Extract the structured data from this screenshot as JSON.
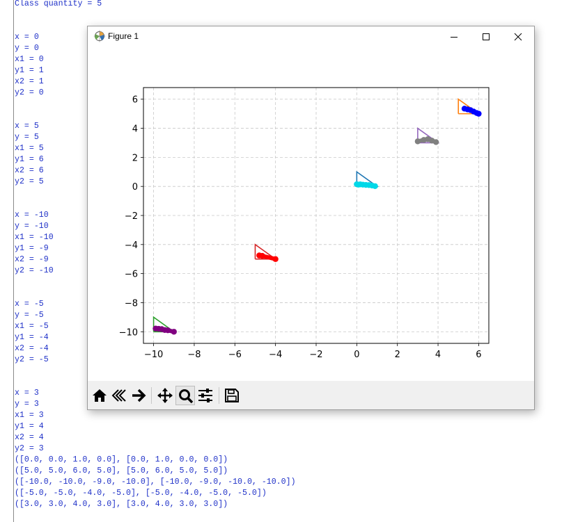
{
  "console": {
    "lines": [
      "Class quantity = 5",
      "",
      "",
      "x = 0",
      "y = 0",
      "x1 = 0",
      "y1 = 1",
      "x2 = 1",
      "y2 = 0",
      "",
      "",
      "x = 5",
      "y = 5",
      "x1 = 5",
      "y1 = 6",
      "x2 = 6",
      "y2 = 5",
      "",
      "",
      "x = -10",
      "y = -10",
      "x1 = -10",
      "y1 = -9",
      "x2 = -9",
      "y2 = -10",
      "",
      "",
      "x = -5",
      "y = -5",
      "x1 = -5",
      "y1 = -4",
      "x2 = -4",
      "y2 = -5",
      "",
      "",
      "x = 3",
      "y = 3",
      "x1 = 3",
      "y1 = 4",
      "x2 = 4",
      "y2 = 3",
      "([0.0, 0.0, 1.0, 0.0], [0.0, 1.0, 0.0, 0.0])",
      "([5.0, 5.0, 6.0, 5.0], [5.0, 6.0, 5.0, 5.0])",
      "([-10.0, -10.0, -9.0, -10.0], [-10.0, -9.0, -10.0, -10.0])",
      "([-5.0, -5.0, -4.0, -5.0], [-5.0, -4.0, -5.0, -5.0])",
      "([3.0, 3.0, 4.0, 3.0], [3.0, 4.0, 3.0, 3.0])"
    ]
  },
  "window": {
    "title": "Figure 1",
    "icons": {
      "app": "matplotlib-figure-icon",
      "minimize": "minimize-icon",
      "maximize": "maximize-icon",
      "close": "close-icon"
    }
  },
  "toolbar": {
    "buttons": [
      {
        "name": "home-button",
        "icon": "home-icon"
      },
      {
        "name": "back-button",
        "icon": "back-arrow-icon"
      },
      {
        "name": "forward-button",
        "icon": "forward-arrow-icon"
      },
      {
        "name": "pan-button",
        "icon": "pan-move-icon"
      },
      {
        "name": "zoom-button",
        "icon": "zoom-magnifier-icon",
        "active": true
      },
      {
        "name": "configure-subplots-button",
        "icon": "sliders-icon"
      },
      {
        "name": "save-button",
        "icon": "save-disk-icon"
      }
    ]
  },
  "chart_data": {
    "type": "line",
    "title": "",
    "xlabel": "",
    "ylabel": "",
    "xlim": [
      -10.5,
      6.5
    ],
    "ylim": [
      -10.8,
      6.8
    ],
    "xticks": [
      -10,
      -8,
      -6,
      -4,
      -2,
      0,
      2,
      4,
      6
    ],
    "xtick_labels": [
      "−10",
      "−8",
      "−6",
      "−4",
      "−2",
      "0",
      "2",
      "4",
      "6"
    ],
    "yticks": [
      -10,
      -8,
      -6,
      -4,
      -2,
      0,
      2,
      4,
      6
    ],
    "ytick_labels": [
      "−10",
      "−8",
      "−6",
      "−4",
      "−2",
      "0",
      "2",
      "4",
      "6"
    ],
    "grid": true,
    "grid_style": "dashed",
    "legend": "none",
    "series": [
      {
        "triangle_x": [
          0.0,
          0.0,
          1.0,
          0.0
        ],
        "triangle_y": [
          0.0,
          1.0,
          0.0,
          0.0
        ],
        "line_color": "#1f77b4",
        "points_color": "#00d8e8",
        "points": [
          [
            0.0,
            0.15
          ],
          [
            0.08,
            0.12
          ],
          [
            0.17,
            0.14
          ],
          [
            0.3,
            0.12
          ],
          [
            0.45,
            0.1
          ],
          [
            0.6,
            0.09
          ],
          [
            0.75,
            0.06
          ],
          [
            0.9,
            0.02
          ]
        ]
      },
      {
        "triangle_x": [
          5.0,
          5.0,
          6.0,
          5.0
        ],
        "triangle_y": [
          5.0,
          6.0,
          5.0,
          5.0
        ],
        "line_color": "#ff7f0e",
        "points_color": "#0000ff",
        "points": [
          [
            5.3,
            5.35
          ],
          [
            5.45,
            5.3
          ],
          [
            5.6,
            5.25
          ],
          [
            5.75,
            5.15
          ],
          [
            5.9,
            5.05
          ],
          [
            6.0,
            5.0
          ]
        ]
      },
      {
        "triangle_x": [
          -10.0,
          -10.0,
          -9.0,
          -10.0
        ],
        "triangle_y": [
          -10.0,
          -9.0,
          -10.0,
          -10.0
        ],
        "line_color": "#2ca02c",
        "points_color": "#800080",
        "points": [
          [
            -9.9,
            -9.78
          ],
          [
            -9.75,
            -9.8
          ],
          [
            -9.6,
            -9.82
          ],
          [
            -9.45,
            -9.88
          ],
          [
            -9.3,
            -9.9
          ],
          [
            -9.0,
            -10.0
          ]
        ]
      },
      {
        "triangle_x": [
          -5.0,
          -5.0,
          -4.0,
          -5.0
        ],
        "triangle_y": [
          -5.0,
          -4.0,
          -5.0,
          -5.0
        ],
        "line_color": "#d62728",
        "points_color": "#ff0000",
        "points": [
          [
            -4.8,
            -4.75
          ],
          [
            -4.65,
            -4.78
          ],
          [
            -4.0,
            -5.0
          ]
        ]
      },
      {
        "triangle_x": [
          3.0,
          3.0,
          4.0,
          3.0
        ],
        "triangle_y": [
          3.0,
          4.0,
          3.0,
          3.0
        ],
        "line_color": "#9467bd",
        "points_color": "#808080",
        "points": [
          [
            3.0,
            3.1
          ],
          [
            3.3,
            3.2
          ],
          [
            3.5,
            3.25
          ],
          [
            3.7,
            3.15
          ],
          [
            3.9,
            3.05
          ]
        ]
      }
    ]
  }
}
